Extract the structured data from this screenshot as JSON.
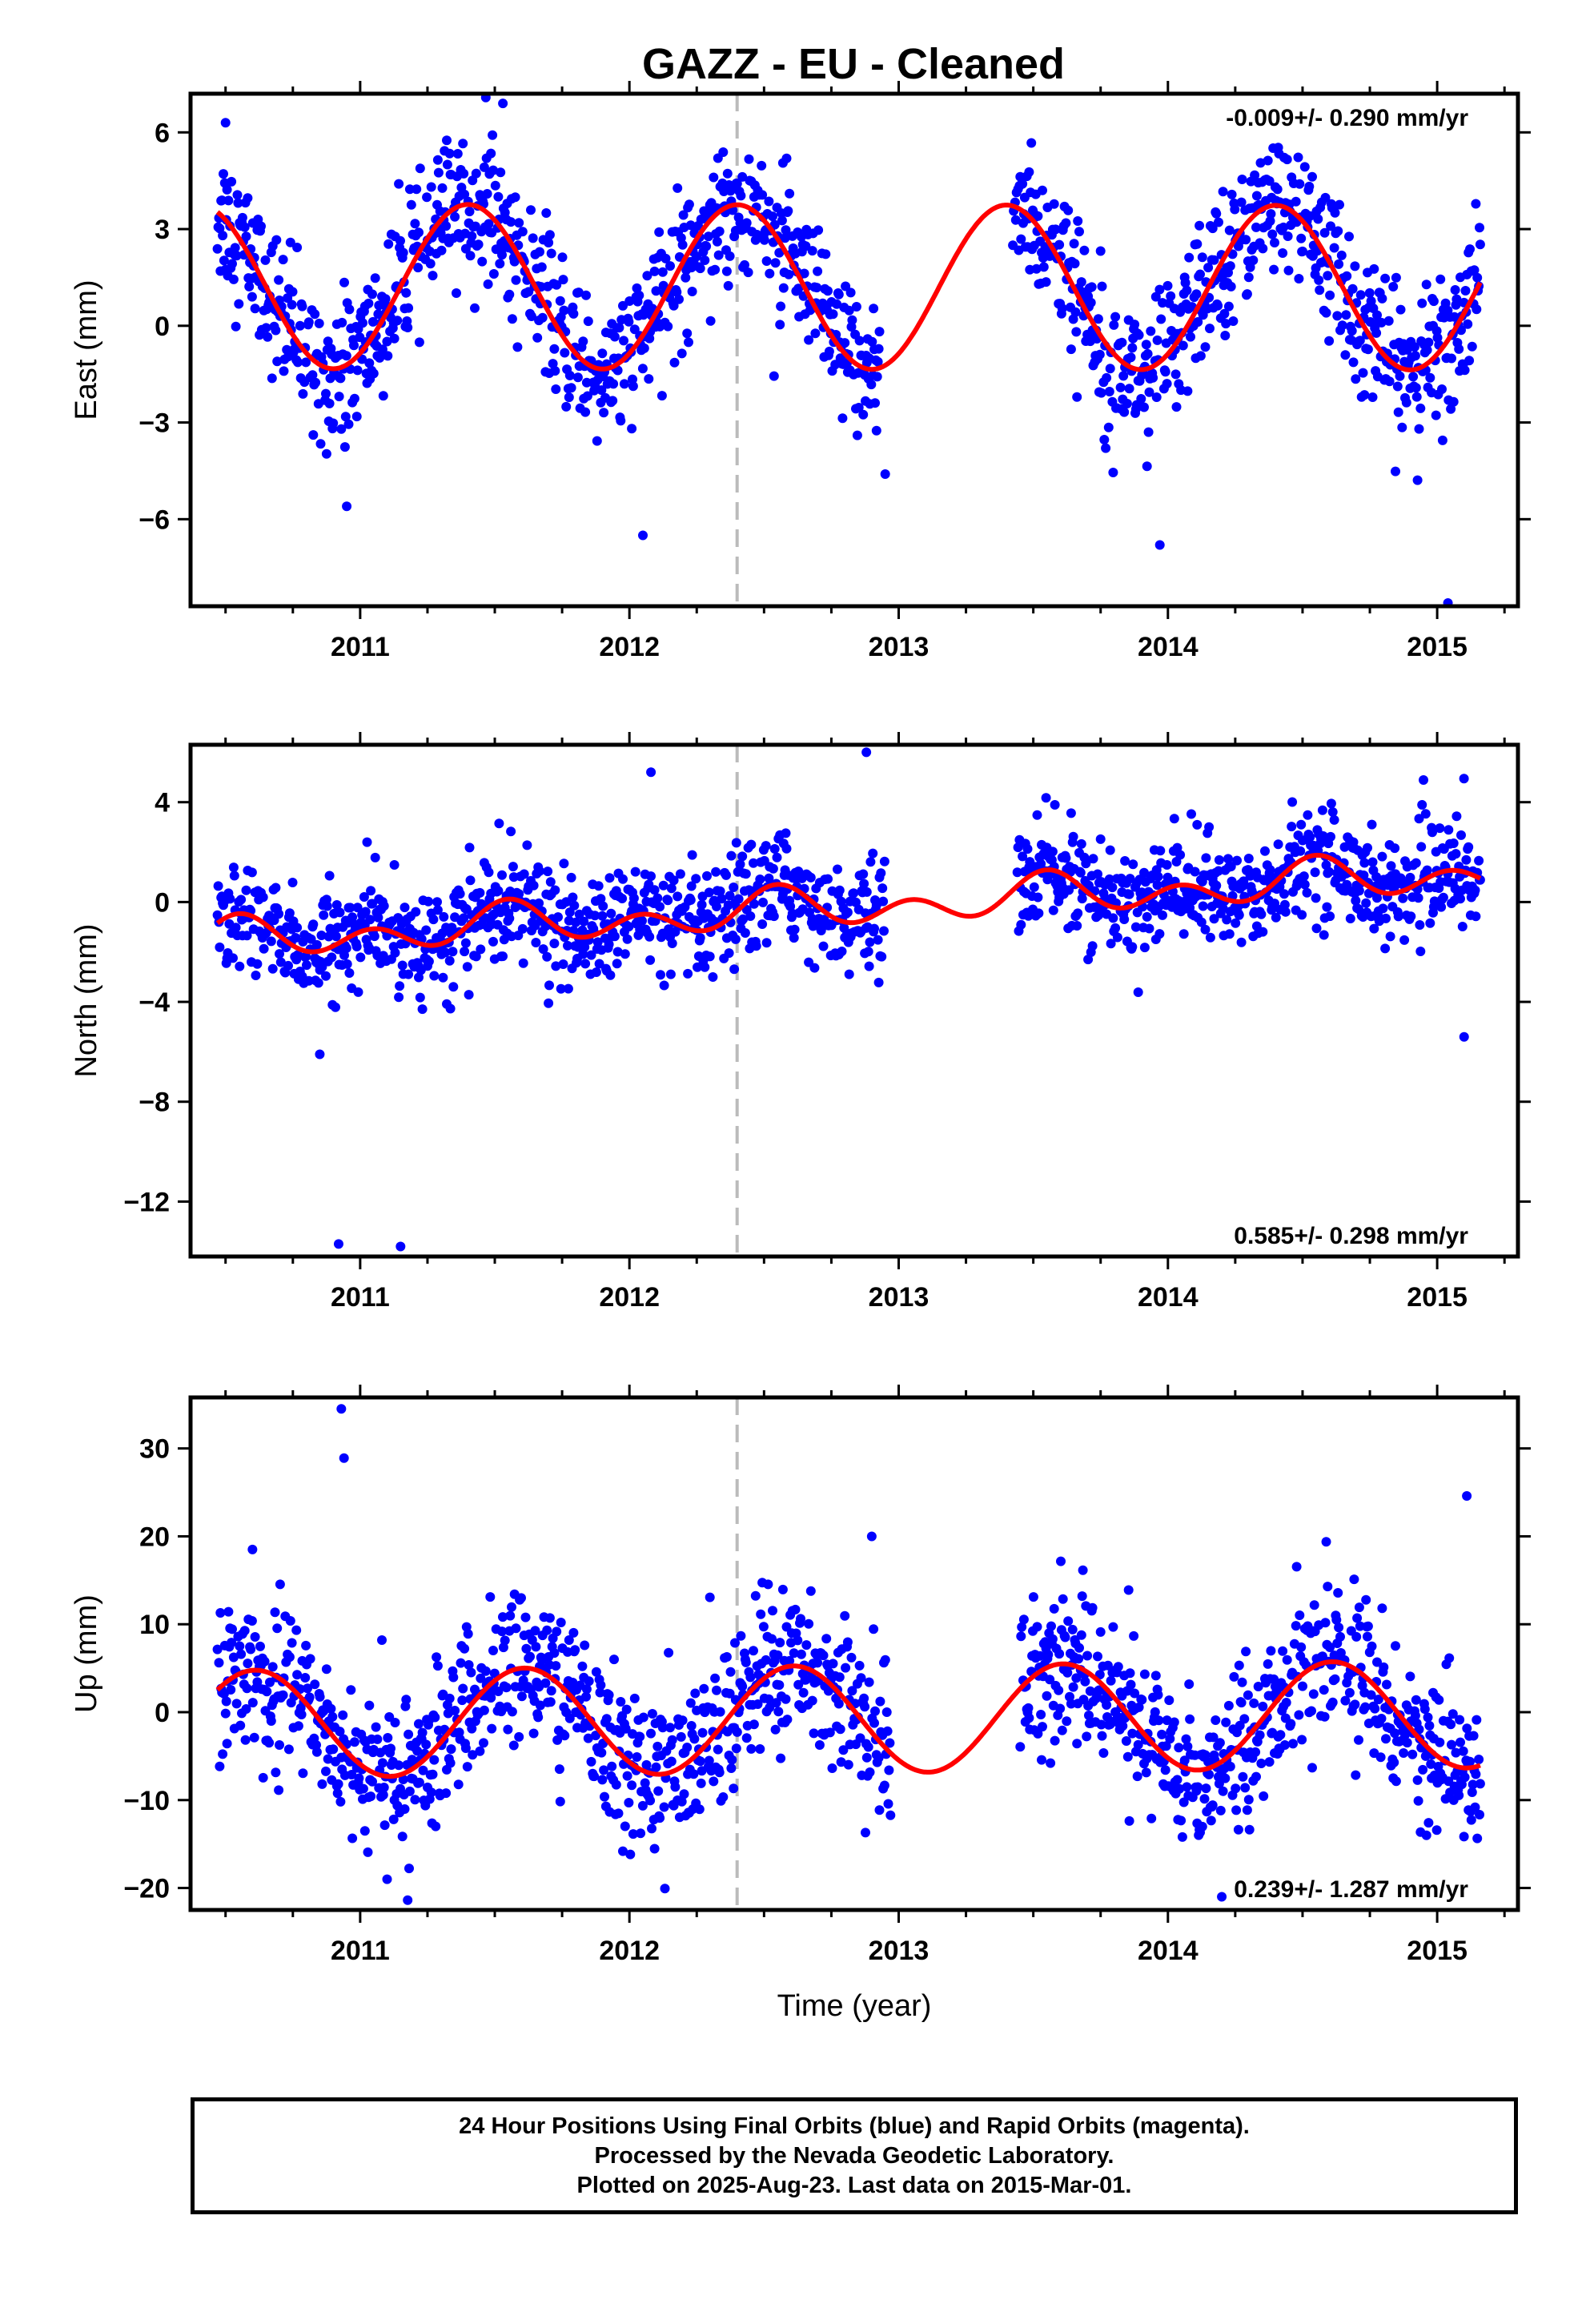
{
  "title": "GAZZ  - EU - Cleaned",
  "footer": {
    "line1": "24 Hour Positions Using Final Orbits (blue) and Rapid Orbits (magenta).",
    "line2": "Processed by the Nevada Geodetic Laboratory.",
    "line3": "Plotted on 2025-Aug-23. Last data on 2015-Mar-01."
  },
  "colors": {
    "final_orbits": "#0000ff",
    "model_fit": "#ff0000",
    "equipment_change_line": "#bbbbbb",
    "frame": "#000000"
  },
  "chart_data": [
    {
      "type": "scatter",
      "panel": "east",
      "ylabel": "East (mm)",
      "xlabel": "",
      "rate_text": "-0.009+/- 0.290 mm/yr",
      "rate_position": "top-right",
      "xlim": [
        2010.37,
        2015.3
      ],
      "ylim": [
        -8.7,
        7.2
      ],
      "xticks": [
        2011,
        2012,
        2013,
        2014,
        2015
      ],
      "xtick_labels": [
        "2011",
        "2012",
        "2013",
        "2014",
        "2015"
      ],
      "yticks": [
        6,
        3,
        0,
        -3,
        -6
      ],
      "ytick_labels": [
        "6",
        "3",
        "0",
        "−3",
        "−6"
      ],
      "grid": false,
      "vertical_dashed_line_x": 2012.4,
      "data_range": [
        2010.47,
        2015.16
      ],
      "gaps": [
        [
          2012.93,
          2013.42
        ]
      ],
      "model": {
        "name": "",
        "mean": 1.2,
        "amp1": 2.55,
        "amp2": 0.0,
        "phase_peak": 0.4,
        "trend": -0.009
      },
      "scatter_sd": 1.1,
      "outliers": [
        [
          2010.5,
          6.3
        ],
        [
          2010.95,
          -5.6
        ],
        [
          2012.05,
          -6.5
        ],
        [
          2012.95,
          -4.6
        ],
        [
          2013.97,
          -6.8
        ],
        [
          2015.04,
          -8.6
        ],
        [
          2011.53,
          6.9
        ]
      ]
    },
    {
      "type": "scatter",
      "panel": "north",
      "ylabel": "North (mm)",
      "xlabel": "",
      "rate_text": "0.585+/- 0.298 mm/yr",
      "rate_position": "bottom-right",
      "xlim": [
        2010.37,
        2015.3
      ],
      "ylim": [
        -14.2,
        6.3
      ],
      "xticks": [
        2011,
        2012,
        2013,
        2014,
        2015
      ],
      "xtick_labels": [
        "2011",
        "2012",
        "2013",
        "2014",
        "2015"
      ],
      "yticks": [
        4,
        0,
        -4,
        -8,
        -12
      ],
      "ytick_labels": [
        "4",
        "0",
        "−4",
        "−8",
        "−12"
      ],
      "grid": false,
      "vertical_dashed_line_x": 2012.4,
      "data_range": [
        2010.47,
        2015.16
      ],
      "gaps": [
        [
          2012.95,
          2013.44
        ]
      ],
      "model": {
        "name": "",
        "mean": -0.2,
        "amp1": 0.45,
        "amp2": 0.6,
        "phase_peak": 0.55,
        "trend": 0.585
      },
      "scatter_sd": 1.05,
      "outliers": [
        [
          2010.92,
          -13.7
        ],
        [
          2011.15,
          -13.8
        ],
        [
          2012.88,
          6.0
        ],
        [
          2015.1,
          -5.4
        ],
        [
          2012.08,
          5.2
        ],
        [
          2010.85,
          -6.1
        ]
      ]
    },
    {
      "type": "scatter",
      "panel": "up",
      "ylabel": "Up (mm)",
      "xlabel": "Time (year)",
      "rate_text": "0.239+/- 1.287 mm/yr",
      "rate_position": "bottom-right",
      "xlim": [
        2010.37,
        2015.3
      ],
      "ylim": [
        -22.5,
        35.8
      ],
      "xticks": [
        2011,
        2012,
        2013,
        2014,
        2015
      ],
      "xtick_labels": [
        "2011",
        "2012",
        "2013",
        "2014",
        "2015"
      ],
      "yticks": [
        30,
        20,
        10,
        0,
        -10,
        -20
      ],
      "ytick_labels": [
        "30",
        "20",
        "10",
        "0",
        "−10",
        "−20"
      ],
      "grid": false,
      "vertical_dashed_line_x": 2012.4,
      "data_range": [
        2010.47,
        2015.16
      ],
      "gaps": [
        [
          2012.97,
          2013.45
        ]
      ],
      "model": {
        "name": "",
        "mean": -0.8,
        "amp1": 6.1,
        "amp2": 0.0,
        "phase_peak": 0.61,
        "trend": 0.239
      },
      "scatter_sd": 4.3,
      "outliers": [
        [
          2010.93,
          34.5
        ],
        [
          2010.94,
          28.9
        ],
        [
          2015.11,
          24.6
        ],
        [
          2010.6,
          18.5
        ],
        [
          2012.9,
          20.0
        ],
        [
          2014.2,
          -21.0
        ],
        [
          2011.1,
          -19.0
        ]
      ]
    }
  ]
}
